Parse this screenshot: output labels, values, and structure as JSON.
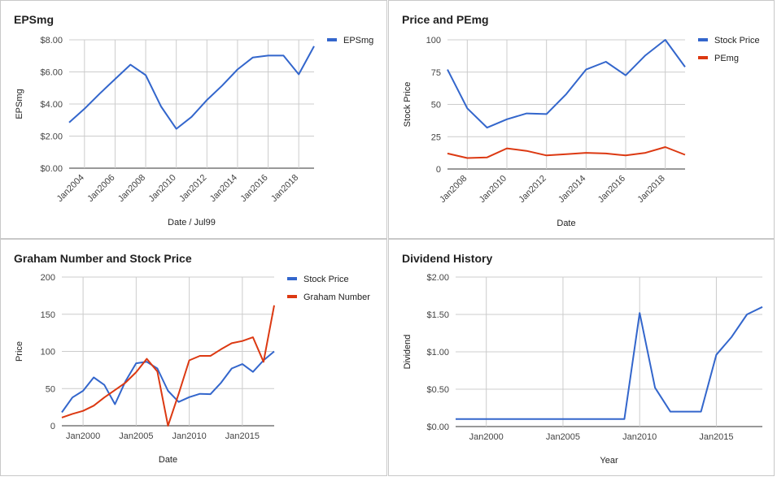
{
  "chart_data": [
    {
      "type": "line",
      "title": "EPSmg",
      "xlabel": "Date / Jul99",
      "ylabel": "EPSmg",
      "xlim": [
        2003,
        2019
      ],
      "ylim": [
        0,
        8
      ],
      "yticks": [
        0,
        2,
        4,
        6,
        8
      ],
      "ytick_labels": [
        "$0.00",
        "$2.00",
        "$4.00",
        "$6.00",
        "$8.00"
      ],
      "xticks": [
        2004,
        2006,
        2008,
        2010,
        2012,
        2014,
        2016,
        2018
      ],
      "xtick_labels": [
        "Jan2004",
        "Jan2006",
        "Jan2008",
        "Jan2010",
        "Jan2012",
        "Jan2014",
        "Jan2016",
        "Jan2018"
      ],
      "xtick_rotate": true,
      "legend_position": "right",
      "series": [
        {
          "name": "EPSmg",
          "color": "#3366cc",
          "x": [
            2003,
            2004,
            2005,
            2006,
            2007,
            2008,
            2009,
            2010,
            2011,
            2012,
            2013,
            2014,
            2015,
            2016,
            2017,
            2018,
            2019
          ],
          "y": [
            2.85,
            3.7,
            4.65,
            5.55,
            6.45,
            5.8,
            3.85,
            2.45,
            3.2,
            4.25,
            5.15,
            6.15,
            6.9,
            7.02,
            7.02,
            5.85,
            7.6
          ]
        }
      ]
    },
    {
      "type": "line",
      "title": "Price and PEmg",
      "xlabel": "Date",
      "ylabel": "Stock Price",
      "xlim": [
        2007,
        2019
      ],
      "ylim": [
        0,
        100
      ],
      "yticks": [
        0,
        25,
        50,
        75,
        100
      ],
      "ytick_labels": [
        "0",
        "25",
        "50",
        "75",
        "100"
      ],
      "xticks": [
        2008,
        2010,
        2012,
        2014,
        2016,
        2018
      ],
      "xtick_labels": [
        "Jan2008",
        "Jan2010",
        "Jan2012",
        "Jan2014",
        "Jan2016",
        "Jan2018"
      ],
      "xtick_rotate": true,
      "legend_position": "right",
      "series": [
        {
          "name": "Stock Price",
          "color": "#3366cc",
          "x": [
            2007,
            2008,
            2009,
            2010,
            2011,
            2012,
            2013,
            2014,
            2015,
            2016,
            2017,
            2018,
            2019
          ],
          "y": [
            77,
            47,
            32,
            38.5,
            43,
            42.5,
            58,
            77,
            83,
            72.5,
            88,
            100,
            79
          ]
        },
        {
          "name": "PEmg",
          "color": "#dc3912",
          "x": [
            2007,
            2008,
            2009,
            2010,
            2011,
            2012,
            2013,
            2014,
            2015,
            2016,
            2017,
            2018,
            2019
          ],
          "y": [
            12,
            8.5,
            9,
            16,
            14,
            10.5,
            11.5,
            12.5,
            12,
            10.5,
            12.5,
            17,
            11
          ]
        }
      ]
    },
    {
      "type": "line",
      "title": "Graham Number and Stock Price",
      "xlabel": "Date",
      "ylabel": "Price",
      "xlim": [
        1998,
        2018
      ],
      "ylim": [
        0,
        200
      ],
      "yticks": [
        0,
        50,
        100,
        150,
        200
      ],
      "ytick_labels": [
        "0",
        "50",
        "100",
        "150",
        "200"
      ],
      "xticks": [
        2000,
        2005,
        2010,
        2015
      ],
      "xtick_labels": [
        "Jan2000",
        "Jan2005",
        "Jan2010",
        "Jan2015"
      ],
      "xtick_rotate": false,
      "legend_position": "right",
      "series": [
        {
          "name": "Stock Price",
          "color": "#3366cc",
          "x": [
            1998,
            1999,
            2000,
            2001,
            2002,
            2003,
            2004,
            2005,
            2006,
            2007,
            2008,
            2009,
            2010,
            2011,
            2012,
            2013,
            2014,
            2015,
            2016,
            2017,
            2018
          ],
          "y": [
            18,
            38,
            47,
            65,
            55,
            29,
            60,
            84,
            86,
            77,
            47,
            32,
            38.5,
            43,
            42.5,
            58,
            77,
            83,
            72.5,
            88,
            100
          ]
        },
        {
          "name": "Graham Number",
          "color": "#dc3912",
          "x": [
            1998,
            1999,
            2000,
            2001,
            2002,
            2003,
            2004,
            2005,
            2006,
            2007,
            2008,
            2009,
            2010,
            2011,
            2012,
            2013,
            2014,
            2015,
            2016,
            2017,
            2018
          ],
          "y": [
            11,
            16,
            20,
            27,
            38,
            48,
            58,
            72,
            90,
            73,
            0,
            43,
            88,
            94,
            94,
            103,
            111,
            114,
            119,
            86,
            162
          ]
        }
      ]
    },
    {
      "type": "line",
      "title": "Dividend History",
      "xlabel": "Year",
      "ylabel": "Dividend",
      "xlim": [
        1998,
        2018
      ],
      "ylim": [
        0,
        2
      ],
      "yticks": [
        0,
        0.5,
        1,
        1.5,
        2
      ],
      "ytick_labels": [
        "$0.00",
        "$0.50",
        "$1.00",
        "$1.50",
        "$2.00"
      ],
      "xticks": [
        2000,
        2005,
        2010,
        2015
      ],
      "xtick_labels": [
        "Jan2000",
        "Jan2005",
        "Jan2010",
        "Jan2015"
      ],
      "xtick_rotate": false,
      "legend_position": "none",
      "series": [
        {
          "name": "",
          "color": "#3366cc",
          "x": [
            1998,
            1999,
            2000,
            2001,
            2002,
            2003,
            2004,
            2005,
            2006,
            2007,
            2008,
            2009,
            2010,
            2011,
            2012,
            2013,
            2014,
            2015,
            2016,
            2017,
            2018
          ],
          "y": [
            0.1,
            0.1,
            0.1,
            0.1,
            0.1,
            0.1,
            0.1,
            0.1,
            0.1,
            0.1,
            0.1,
            0.1,
            1.52,
            0.52,
            0.2,
            0.2,
            0.2,
            0.96,
            1.2,
            1.5,
            1.6
          ]
        }
      ]
    }
  ]
}
